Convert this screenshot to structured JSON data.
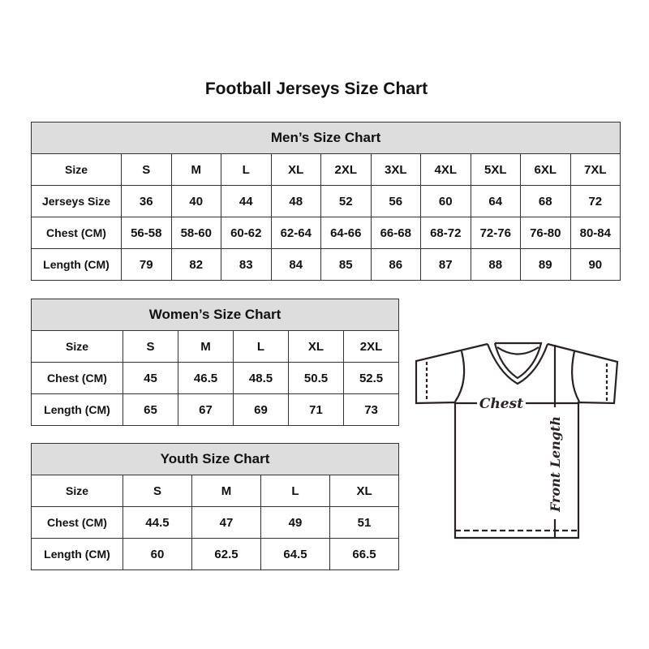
{
  "title": "Football Jerseys Size Chart",
  "men": {
    "heading": "Men’s Size Chart",
    "rows": [
      [
        "Size",
        "S",
        "M",
        "L",
        "XL",
        "2XL",
        "3XL",
        "4XL",
        "5XL",
        "6XL",
        "7XL"
      ],
      [
        "Jerseys Size",
        "36",
        "40",
        "44",
        "48",
        "52",
        "56",
        "60",
        "64",
        "68",
        "72"
      ],
      [
        "Chest (CM)",
        "56-58",
        "58-60",
        "60-62",
        "62-64",
        "64-66",
        "66-68",
        "68-72",
        "72-76",
        "76-80",
        "80-84"
      ],
      [
        "Length (CM)",
        "79",
        "82",
        "83",
        "84",
        "85",
        "86",
        "87",
        "88",
        "89",
        "90"
      ]
    ]
  },
  "women": {
    "heading": "Women’s Size Chart",
    "rows": [
      [
        "Size",
        "S",
        "M",
        "L",
        "XL",
        "2XL"
      ],
      [
        "Chest (CM)",
        "45",
        "46.5",
        "48.5",
        "50.5",
        "52.5"
      ],
      [
        "Length (CM)",
        "65",
        "67",
        "69",
        "71",
        "73"
      ]
    ]
  },
  "youth": {
    "heading": "Youth Size Chart",
    "rows": [
      [
        "Size",
        "S",
        "M",
        "L",
        "XL"
      ],
      [
        "Chest (CM)",
        "44.5",
        "47",
        "49",
        "51"
      ],
      [
        "Length (CM)",
        "60",
        "62.5",
        "64.5",
        "66.5"
      ]
    ]
  },
  "diagram": {
    "chest_label": "Chest",
    "length_label": "Front Length",
    "icon": "t-shirt-outline"
  }
}
